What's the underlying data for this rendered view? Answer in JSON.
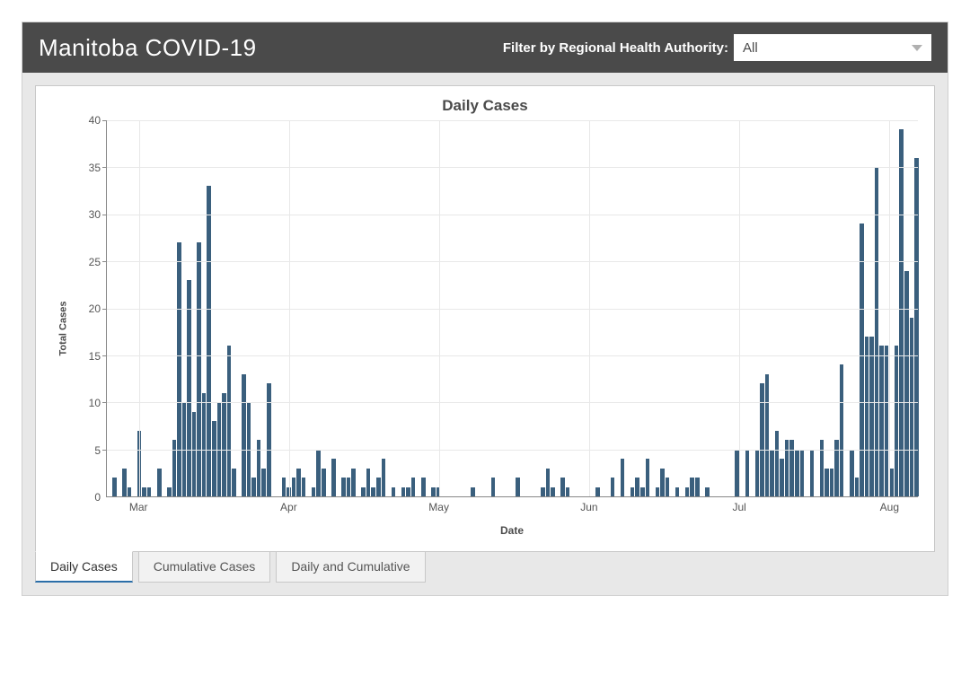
{
  "header": {
    "title": "Manitoba COVID-19",
    "filter_label": "Filter by Regional Health Authority:",
    "filter_value": "All"
  },
  "chart": {
    "type": "bar",
    "title": "Daily Cases",
    "ylabel": "Total Cases",
    "xlabel": "Date",
    "ylim": [
      0,
      40
    ],
    "ytick_step": 5,
    "yticks": [
      0,
      5,
      10,
      15,
      20,
      25,
      30,
      35,
      40
    ],
    "bar_color": "#3a5f7d",
    "background_color": "#ffffff",
    "grid_color": "#e8e8e8",
    "axis_color": "#888888",
    "text_color": "#555555",
    "title_fontsize": 17,
    "label_fontsize": 11,
    "tick_fontsize": 12,
    "x_months": [
      "Mar",
      "Apr",
      "May",
      "Jun",
      "Jul",
      "Aug"
    ],
    "x_month_positions_pct": [
      4,
      22.5,
      41,
      59.5,
      78,
      96.5
    ],
    "values": [
      0,
      2,
      0,
      3,
      1,
      0,
      7,
      1,
      1,
      0,
      3,
      0,
      1,
      6,
      27,
      10,
      23,
      9,
      27,
      11,
      33,
      8,
      10,
      11,
      16,
      3,
      0,
      13,
      10,
      2,
      6,
      3,
      12,
      0,
      0,
      2,
      1,
      2,
      3,
      2,
      0,
      1,
      5,
      3,
      0,
      4,
      0,
      2,
      2,
      3,
      0,
      1,
      3,
      1,
      2,
      4,
      0,
      1,
      0,
      1,
      1,
      2,
      0,
      2,
      0,
      1,
      1,
      0,
      0,
      0,
      0,
      0,
      0,
      1,
      0,
      0,
      0,
      2,
      0,
      0,
      0,
      0,
      2,
      0,
      0,
      0,
      0,
      1,
      3,
      1,
      0,
      2,
      1,
      0,
      0,
      0,
      0,
      0,
      1,
      0,
      0,
      2,
      0,
      4,
      0,
      1,
      2,
      1,
      4,
      0,
      1,
      3,
      2,
      0,
      1,
      0,
      1,
      2,
      2,
      0,
      1,
      0,
      0,
      0,
      0,
      0,
      5,
      0,
      5,
      0,
      5,
      12,
      13,
      5,
      7,
      4,
      6,
      6,
      5,
      5,
      0,
      5,
      0,
      6,
      3,
      3,
      6,
      14,
      0,
      5,
      2,
      29,
      17,
      17,
      35,
      16,
      16,
      3,
      16,
      39,
      24,
      19,
      36
    ]
  },
  "tabs": {
    "items": [
      {
        "label": "Daily Cases",
        "active": true
      },
      {
        "label": "Cumulative Cases",
        "active": false
      },
      {
        "label": "Daily and Cumulative",
        "active": false
      }
    ]
  }
}
